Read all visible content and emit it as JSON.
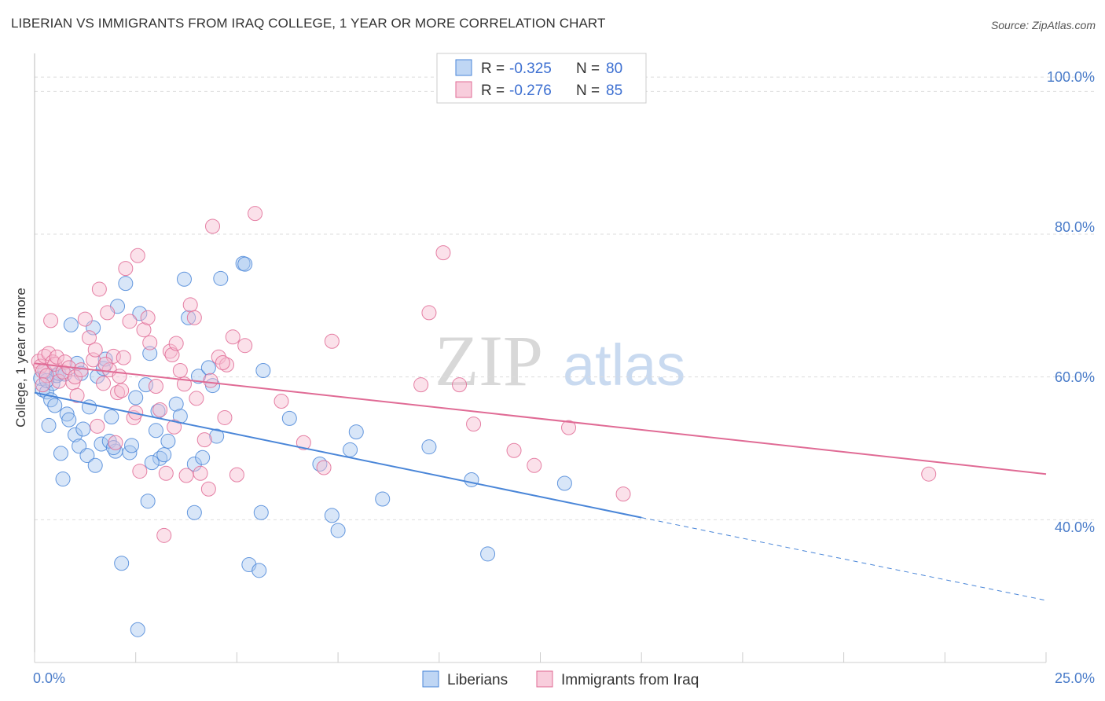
{
  "title": "LIBERIAN VS IMMIGRANTS FROM IRAQ COLLEGE, 1 YEAR OR MORE CORRELATION CHART",
  "source": "Source: ZipAtlas.com",
  "watermark": {
    "part1": "ZIP",
    "part2": "atlas"
  },
  "colors": {
    "liberians": "#4a86d8",
    "iraq": "#e06b95",
    "liberians_fill": "#a9c8f0",
    "iraq_fill": "#f6bcd0",
    "tick_text": "#4a7cc9"
  },
  "legend_box": {
    "row1": {
      "r_label": "R =",
      "r_value": "-0.325",
      "n_label": "N =",
      "n_value": "80"
    },
    "row2": {
      "r_label": "R =",
      "r_value": "-0.276",
      "n_label": "N =",
      "n_value": "85"
    }
  },
  "bottom_legend": {
    "series1": "Liberians",
    "series2": "Immigrants from Iraq"
  },
  "chart_data": {
    "type": "scatter",
    "title": "LIBERIAN VS IMMIGRANTS FROM IRAQ COLLEGE, 1 YEAR OR MORE CORRELATION CHART",
    "xlabel": "",
    "ylabel": "College, 1 year or more",
    "xlim": [
      0,
      25
    ],
    "ylim": [
      20,
      104
    ],
    "x_tick_labels": [
      "0.0%",
      "25.0%"
    ],
    "y_ticks": [
      40,
      60,
      80,
      100
    ],
    "y_tick_labels": [
      "40.0%",
      "60.0%",
      "80.0%",
      "100.0%"
    ],
    "grid": "horizontal dashed",
    "legend_position": "top-center",
    "series": [
      {
        "name": "Liberians",
        "r": -0.325,
        "n": 80,
        "trend": {
          "x0": 0,
          "y0": 57.8,
          "x1": 15,
          "y1": 40.3,
          "dashed_to_x": 25,
          "dashed_to_y": 28.7
        },
        "points": [
          [
            0.15,
            59.8
          ],
          [
            0.2,
            58.2
          ],
          [
            0.25,
            60.8
          ],
          [
            0.3,
            57.9
          ],
          [
            0.35,
            53.2
          ],
          [
            0.4,
            56.8
          ],
          [
            0.45,
            59.1
          ],
          [
            0.5,
            56.0
          ],
          [
            0.55,
            60.2
          ],
          [
            0.6,
            60.5
          ],
          [
            0.65,
            49.3
          ],
          [
            0.7,
            45.7
          ],
          [
            0.8,
            54.8
          ],
          [
            0.85,
            54.0
          ],
          [
            0.9,
            67.3
          ],
          [
            1.0,
            51.9
          ],
          [
            1.05,
            61.9
          ],
          [
            1.1,
            50.3
          ],
          [
            1.2,
            52.7
          ],
          [
            1.3,
            49.0
          ],
          [
            1.35,
            55.8
          ],
          [
            1.45,
            66.9
          ],
          [
            1.5,
            47.6
          ],
          [
            1.55,
            60.1
          ],
          [
            1.65,
            50.6
          ],
          [
            1.7,
            61.2
          ],
          [
            1.75,
            62.5
          ],
          [
            1.85,
            51.0
          ],
          [
            1.9,
            54.4
          ],
          [
            2.0,
            49.6
          ],
          [
            2.05,
            69.9
          ],
          [
            2.15,
            33.9
          ],
          [
            2.25,
            73.1
          ],
          [
            2.35,
            49.4
          ],
          [
            2.4,
            50.4
          ],
          [
            2.5,
            57.1
          ],
          [
            2.6,
            68.9
          ],
          [
            2.55,
            24.6
          ],
          [
            2.75,
            58.9
          ],
          [
            2.8,
            42.6
          ],
          [
            2.85,
            63.3
          ],
          [
            3.0,
            52.5
          ],
          [
            3.05,
            55.2
          ],
          [
            3.1,
            48.6
          ],
          [
            3.2,
            49.1
          ],
          [
            3.3,
            51.0
          ],
          [
            3.5,
            56.2
          ],
          [
            3.6,
            54.5
          ],
          [
            3.7,
            73.7
          ],
          [
            3.8,
            68.3
          ],
          [
            3.95,
            47.8
          ],
          [
            3.95,
            41.0
          ],
          [
            4.05,
            60.1
          ],
          [
            4.15,
            48.7
          ],
          [
            4.3,
            61.3
          ],
          [
            4.4,
            58.8
          ],
          [
            4.5,
            51.7
          ],
          [
            4.6,
            73.8
          ],
          [
            5.15,
            75.9
          ],
          [
            5.2,
            75.8
          ],
          [
            5.3,
            33.7
          ],
          [
            5.55,
            32.9
          ],
          [
            5.6,
            41.0
          ],
          [
            5.65,
            60.9
          ],
          [
            6.3,
            54.2
          ],
          [
            7.05,
            47.8
          ],
          [
            7.35,
            40.6
          ],
          [
            7.5,
            38.5
          ],
          [
            7.8,
            49.8
          ],
          [
            7.95,
            52.3
          ],
          [
            8.6,
            42.9
          ],
          [
            9.75,
            50.2
          ],
          [
            10.8,
            45.6
          ],
          [
            11.2,
            35.2
          ],
          [
            13.1,
            45.1
          ],
          [
            0.3,
            59.5
          ],
          [
            1.15,
            60.5
          ],
          [
            2.9,
            48.0
          ],
          [
            0.75,
            60.4
          ],
          [
            1.95,
            50.1
          ]
        ]
      },
      {
        "name": "Immigrants from Iraq",
        "r": -0.276,
        "n": 85,
        "trend": {
          "x0": 0,
          "y0": 61.9,
          "x1": 25,
          "y1": 46.4
        },
        "points": [
          [
            0.1,
            62.2
          ],
          [
            0.15,
            61.5
          ],
          [
            0.2,
            60.8
          ],
          [
            0.25,
            62.9
          ],
          [
            0.3,
            60.2
          ],
          [
            0.35,
            63.3
          ],
          [
            0.4,
            67.9
          ],
          [
            0.45,
            62.1
          ],
          [
            0.5,
            61.8
          ],
          [
            0.55,
            62.8
          ],
          [
            0.6,
            59.4
          ],
          [
            0.7,
            60.7
          ],
          [
            0.75,
            62.1
          ],
          [
            0.85,
            61.3
          ],
          [
            0.95,
            59.2
          ],
          [
            1.0,
            60.0
          ],
          [
            1.05,
            57.4
          ],
          [
            1.15,
            61.0
          ],
          [
            1.25,
            68.1
          ],
          [
            1.35,
            65.5
          ],
          [
            1.45,
            62.4
          ],
          [
            1.5,
            63.8
          ],
          [
            1.55,
            53.1
          ],
          [
            1.6,
            72.3
          ],
          [
            1.7,
            59.1
          ],
          [
            1.8,
            69.0
          ],
          [
            1.85,
            61.0
          ],
          [
            1.95,
            62.9
          ],
          [
            2.0,
            50.8
          ],
          [
            2.05,
            57.8
          ],
          [
            2.1,
            60.1
          ],
          [
            2.15,
            58.1
          ],
          [
            2.2,
            62.7
          ],
          [
            2.25,
            75.2
          ],
          [
            2.35,
            67.8
          ],
          [
            2.45,
            54.3
          ],
          [
            2.55,
            77.0
          ],
          [
            2.6,
            46.8
          ],
          [
            2.7,
            66.6
          ],
          [
            2.8,
            68.3
          ],
          [
            2.85,
            64.8
          ],
          [
            3.0,
            58.7
          ],
          [
            3.1,
            55.4
          ],
          [
            3.2,
            37.8
          ],
          [
            3.25,
            46.5
          ],
          [
            3.35,
            63.6
          ],
          [
            3.4,
            63.1
          ],
          [
            3.45,
            53.0
          ],
          [
            3.5,
            64.7
          ],
          [
            3.6,
            60.9
          ],
          [
            3.75,
            46.2
          ],
          [
            3.85,
            70.1
          ],
          [
            3.95,
            68.3
          ],
          [
            4.0,
            57.0
          ],
          [
            4.1,
            46.5
          ],
          [
            4.2,
            51.2
          ],
          [
            4.3,
            44.3
          ],
          [
            4.35,
            59.5
          ],
          [
            4.4,
            81.1
          ],
          [
            4.55,
            62.8
          ],
          [
            4.7,
            54.3
          ],
          [
            4.75,
            61.7
          ],
          [
            4.9,
            65.6
          ],
          [
            5.0,
            46.3
          ],
          [
            5.2,
            64.4
          ],
          [
            5.45,
            82.9
          ],
          [
            6.1,
            56.6
          ],
          [
            6.65,
            50.8
          ],
          [
            7.15,
            47.3
          ],
          [
            7.35,
            65.0
          ],
          [
            9.55,
            58.9
          ],
          [
            9.75,
            69.0
          ],
          [
            10.1,
            77.4
          ],
          [
            10.5,
            58.9
          ],
          [
            10.85,
            53.4
          ],
          [
            11.85,
            49.7
          ],
          [
            12.35,
            47.6
          ],
          [
            13.2,
            52.9
          ],
          [
            14.55,
            43.6
          ],
          [
            22.1,
            46.4
          ],
          [
            0.2,
            58.9
          ],
          [
            1.75,
            61.8
          ],
          [
            2.5,
            55.0
          ],
          [
            3.7,
            59.0
          ],
          [
            4.65,
            62.0
          ]
        ]
      }
    ]
  }
}
